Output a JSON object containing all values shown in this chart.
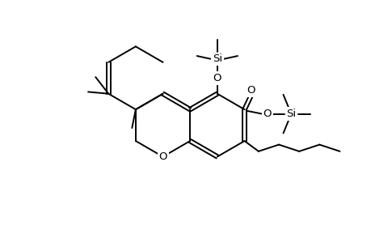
{
  "background_color": "#ffffff",
  "line_color": "#000000",
  "line_width": 1.4,
  "font_size": 9.5,
  "figsize": [
    4.6,
    3.0
  ],
  "dpi": 100,
  "xlim": [
    0,
    10
  ],
  "ylim": [
    0,
    6.5
  ]
}
